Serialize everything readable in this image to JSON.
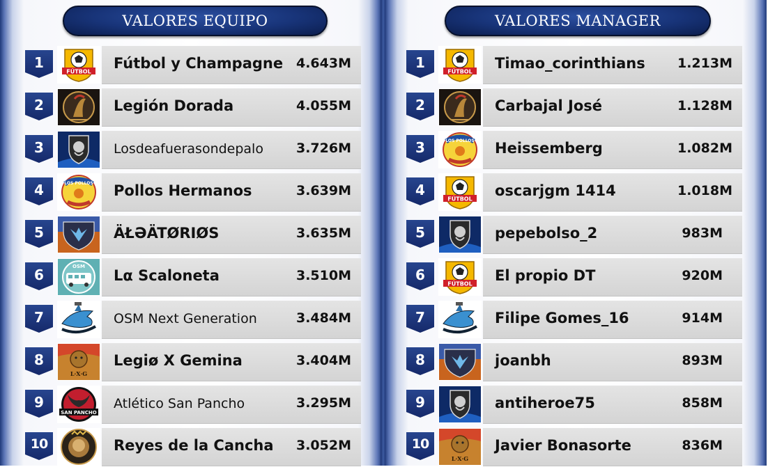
{
  "left": {
    "title": "VALORES EQUIPO",
    "rows": [
      {
        "rank": "1",
        "name": "Fútbol y Champagne",
        "value": "4.643M",
        "logo": "futbol-champagne-crest",
        "logo_text": "FÚTBOL"
      },
      {
        "rank": "2",
        "name": "Legión Dorada",
        "value": "4.055M",
        "logo": "legion-dorada-crest"
      },
      {
        "rank": "3",
        "name": "Losdeafuerasondepalo",
        "value": "3.726M",
        "logo": "lion-shield-crest"
      },
      {
        "rank": "4",
        "name": "Pollos Hermanos",
        "value": "3.639M",
        "logo": "los-pollos-hermanos-crest",
        "logo_text": "LOS POLLOS"
      },
      {
        "rank": "5",
        "name": "ÄŁƏÄTØRIØS",
        "value": "3.635M",
        "logo": "aleatorios-wolf-crest"
      },
      {
        "rank": "6",
        "name": "Lα Scaloneta",
        "value": "3.510M",
        "logo": "osm-bus-crest",
        "logo_text": "OSM"
      },
      {
        "rank": "7",
        "name": "OSM Next Generation",
        "value": "3.484M",
        "logo": "osm-shark-crest"
      },
      {
        "rank": "8",
        "name": "Legiø X Gemina",
        "value": "3.404M",
        "logo": "lion-lxg-crest",
        "logo_text": "L·X·G"
      },
      {
        "rank": "9",
        "name": "Atlético San Pancho",
        "value": "3.295M",
        "logo": "san-pancho-bull-crest",
        "logo_text": "SAN PANCHO"
      },
      {
        "rank": "10",
        "name": "Reyes de la Cancha",
        "value": "3.052M",
        "logo": "reyes-lion-crest"
      }
    ]
  },
  "right": {
    "title": "VALORES MANAGER",
    "rows": [
      {
        "rank": "1",
        "name": "Timao_corinthians",
        "value": "1.213M",
        "logo": "futbol-champagne-crest",
        "logo_text": "FÚTBOL"
      },
      {
        "rank": "2",
        "name": "Carbajal José",
        "value": "1.128M",
        "logo": "legion-dorada-crest"
      },
      {
        "rank": "3",
        "name": "Heissemberg",
        "value": "1.082M",
        "logo": "los-pollos-hermanos-crest",
        "logo_text": "LOS POLLOS"
      },
      {
        "rank": "4",
        "name": "oscarjgm 1414",
        "value": "1.018M",
        "logo": "futbol-champagne-crest",
        "logo_text": "FÚTBOL"
      },
      {
        "rank": "5",
        "name": "pepebolso_2",
        "value": "983M",
        "logo": "lion-shield-crest"
      },
      {
        "rank": "6",
        "name": "El propio DT",
        "value": "920M",
        "logo": "futbol-champagne-crest",
        "logo_text": "FÚTBOL"
      },
      {
        "rank": "7",
        "name": "Filipe Gomes_16",
        "value": "914M",
        "logo": "osm-shark-crest"
      },
      {
        "rank": "8",
        "name": "joanbh",
        "value": "893M",
        "logo": "aleatorios-wolf-crest"
      },
      {
        "rank": "9",
        "name": "antiheroe75",
        "value": "858M",
        "logo": "lion-shield-crest"
      },
      {
        "rank": "10",
        "name": "Javier Bonasorte",
        "value": "836M",
        "logo": "lion-lxg-crest",
        "logo_text": "L·X·G"
      }
    ]
  },
  "colors": {
    "header_bg": "#183479",
    "rank_badge": "#1b3172",
    "card_bg": "#dcdcdc",
    "frame": "#203a7a"
  }
}
